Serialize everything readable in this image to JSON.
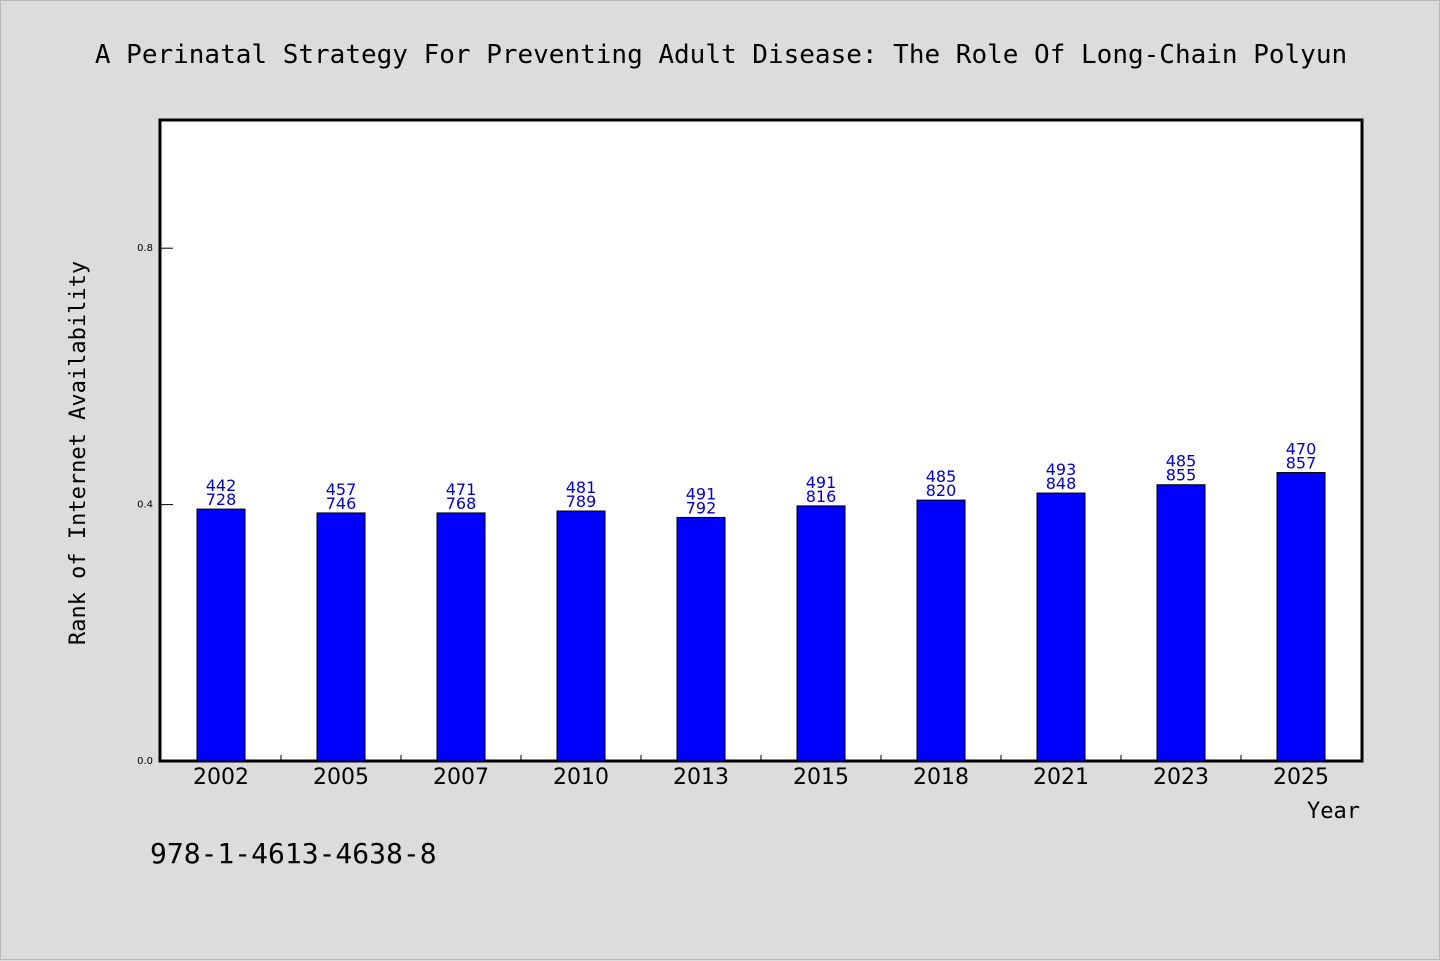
{
  "chart_data": {
    "type": "bar",
    "title": "A Perinatal Strategy For Preventing Adult Disease: The Role Of Long-Chain Polyun",
    "xlabel": "Year",
    "ylabel": "Rank of Internet Availability",
    "categories": [
      "2002",
      "2005",
      "2007",
      "2010",
      "2013",
      "2015",
      "2018",
      "2021",
      "2023",
      "2025"
    ],
    "series": [
      {
        "values": [
          0.393,
          0.387,
          0.387,
          0.39,
          0.38,
          0.398,
          0.407,
          0.418,
          0.431,
          0.45
        ],
        "labels": [
          [
            "442",
            "728"
          ],
          [
            "457",
            "746"
          ],
          [
            "471",
            "768"
          ],
          [
            "481",
            "789"
          ],
          [
            "491",
            "792"
          ],
          [
            "491",
            "816"
          ],
          [
            "485",
            "820"
          ],
          [
            "493",
            "848"
          ],
          [
            "485",
            "855"
          ],
          [
            "470",
            "857"
          ]
        ],
        "color": "#0000ff"
      }
    ],
    "ylim": [
      0,
      1.0
    ],
    "yticks": [
      "0.0",
      "0.4",
      "0.8"
    ],
    "grid": false,
    "legend": "none"
  },
  "footer": {
    "isbn": "978-1-4613-4638-8"
  },
  "colors": {
    "background": "#dcdcdc",
    "plot_background": "#ffffff",
    "bar": "#0000ff",
    "data_label": "#0000cc"
  }
}
